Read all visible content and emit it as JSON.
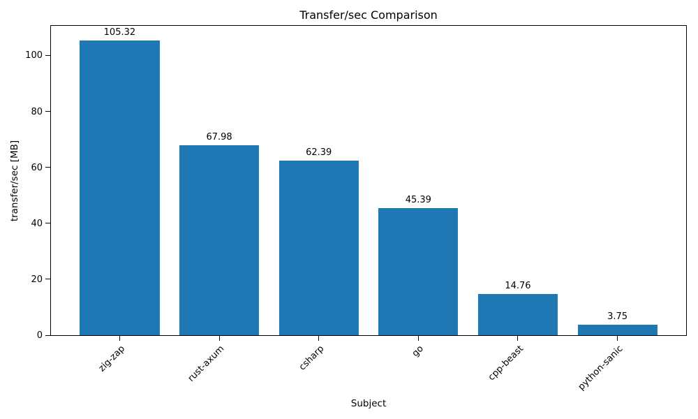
{
  "chart_data": {
    "type": "bar",
    "title": "Transfer/sec Comparison",
    "xlabel": "Subject",
    "ylabel": "transfer/sec [MB]",
    "categories": [
      "zig-zap",
      "rust-axum",
      "csharp",
      "go",
      "cpp-beast",
      "python-sanic"
    ],
    "values": [
      105.32,
      67.98,
      62.39,
      45.39,
      14.76,
      3.75
    ],
    "value_labels": [
      "105.32",
      "67.98",
      "62.39",
      "45.39",
      "14.76",
      "3.75"
    ],
    "yticks": [
      0,
      20,
      40,
      60,
      80,
      100
    ],
    "ylim": [
      0,
      110.6
    ],
    "bar_color": "#1f77b4",
    "grid": false,
    "legend": false,
    "x_tick_rotation_deg": 45
  }
}
